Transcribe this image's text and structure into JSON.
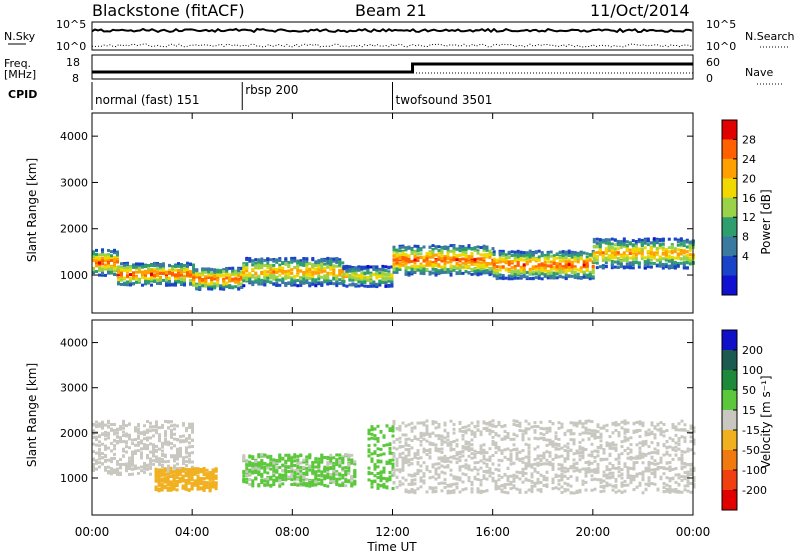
{
  "header": {
    "station": "Blackstone (fitACF)",
    "beam": "Beam 21",
    "date": "11/Oct/2014"
  },
  "noise_panel": {
    "left_label": "N.Sky",
    "right_label": "N.Search",
    "left_ticks": [
      "10^5",
      "10^0"
    ],
    "right_ticks": [
      "10^5",
      "10^0"
    ]
  },
  "freq_panel": {
    "left_label_1": "Freq.",
    "left_label_2": "[MHz]",
    "right_label": "Nave",
    "left_ticks": [
      "18",
      "8"
    ],
    "right_ticks": [
      "60",
      "0"
    ]
  },
  "cpid": {
    "label": "CPID",
    "segments": [
      {
        "name": "normal (fast) 151",
        "start_hour": 0
      },
      {
        "name": "rbsp 200",
        "start_hour": 6
      },
      {
        "name": "twofsound 3501",
        "start_hour": 12
      }
    ]
  },
  "power_colorbar": {
    "label": "Power [dB]",
    "ticks": [
      "28",
      "24",
      "20",
      "16",
      "12",
      "8",
      "4"
    ],
    "colors": [
      "#e00000",
      "#ff6000",
      "#ffa000",
      "#f0d800",
      "#9ad24a",
      "#2e9e6e",
      "#3a7aa0",
      "#1a44c8",
      "#1010d0"
    ]
  },
  "velocity_colorbar": {
    "label": "Velocity [m s⁻¹]",
    "ticks": [
      "200",
      "100",
      "50",
      "15",
      "-15",
      "-50",
      "-100",
      "-200"
    ],
    "colors": [
      "#1010c8",
      "#1a5a50",
      "#1c8a3a",
      "#5ac83a",
      "#c8c8c0",
      "#f0b020",
      "#f07a10",
      "#f04010",
      "#e00000"
    ]
  },
  "chart_data": [
    {
      "type": "heatmap",
      "title": "Blackstone (fitACF)  Beam 21  11/Oct/2014",
      "quantity": "Power",
      "unit": "dB",
      "xlabel": "Time UT",
      "ylabel": "Slant Range [km]",
      "x_ticks": [
        "00:00",
        "04:00",
        "08:00",
        "12:00",
        "16:00",
        "20:00",
        "00:00"
      ],
      "xlim_hours": [
        0,
        24
      ],
      "y_ticks": [
        1000,
        2000,
        3000,
        4000
      ],
      "ylim": [
        180,
        4500
      ],
      "color_range": [
        0,
        32
      ],
      "bands": [
        {
          "t_start": 0.0,
          "t_end": 1.0,
          "range_center": 1300,
          "range_width": 280,
          "power": 28
        },
        {
          "t_start": 1.0,
          "t_end": 4.0,
          "range_center": 1050,
          "range_width": 240,
          "power": 28
        },
        {
          "t_start": 4.0,
          "t_end": 6.0,
          "range_center": 950,
          "range_width": 230,
          "power": 28
        },
        {
          "t_start": 6.0,
          "t_end": 10.0,
          "range_center": 1100,
          "range_width": 300,
          "power": 24
        },
        {
          "t_start": 10.0,
          "t_end": 12.0,
          "range_center": 1000,
          "range_width": 220,
          "power": 20
        },
        {
          "t_start": 12.0,
          "t_end": 16.0,
          "range_center": 1350,
          "range_width": 320,
          "power": 28
        },
        {
          "t_start": 16.0,
          "t_end": 20.0,
          "range_center": 1250,
          "range_width": 300,
          "power": 28
        },
        {
          "t_start": 20.0,
          "t_end": 24.0,
          "range_center": 1500,
          "range_width": 320,
          "power": 24
        }
      ]
    },
    {
      "type": "heatmap",
      "quantity": "Velocity",
      "unit": "m s^-1",
      "xlabel": "Time UT",
      "ylabel": "Slant Range [km]",
      "x_ticks": [
        "00:00",
        "04:00",
        "08:00",
        "12:00",
        "16:00",
        "20:00",
        "00:00"
      ],
      "xlim_hours": [
        0,
        24
      ],
      "y_ticks": [
        1000,
        2000,
        3000,
        4000
      ],
      "ylim": [
        180,
        4500
      ],
      "color_range": [
        -200,
        200
      ],
      "bands": [
        {
          "t_start": 0.0,
          "t_end": 4.0,
          "range_center": 1700,
          "range_width": 600,
          "velocity": 0
        },
        {
          "t_start": 2.5,
          "t_end": 5.0,
          "range_center": 1000,
          "range_width": 250,
          "velocity": -50
        },
        {
          "t_start": 6.0,
          "t_end": 10.5,
          "range_center": 1200,
          "range_width": 350,
          "velocity": 30
        },
        {
          "t_start": 11.0,
          "t_end": 12.0,
          "range_center": 1500,
          "range_width": 700,
          "velocity": 40
        },
        {
          "t_start": 12.0,
          "t_end": 24.0,
          "range_center": 1500,
          "range_width": 800,
          "velocity": 0
        }
      ]
    }
  ]
}
